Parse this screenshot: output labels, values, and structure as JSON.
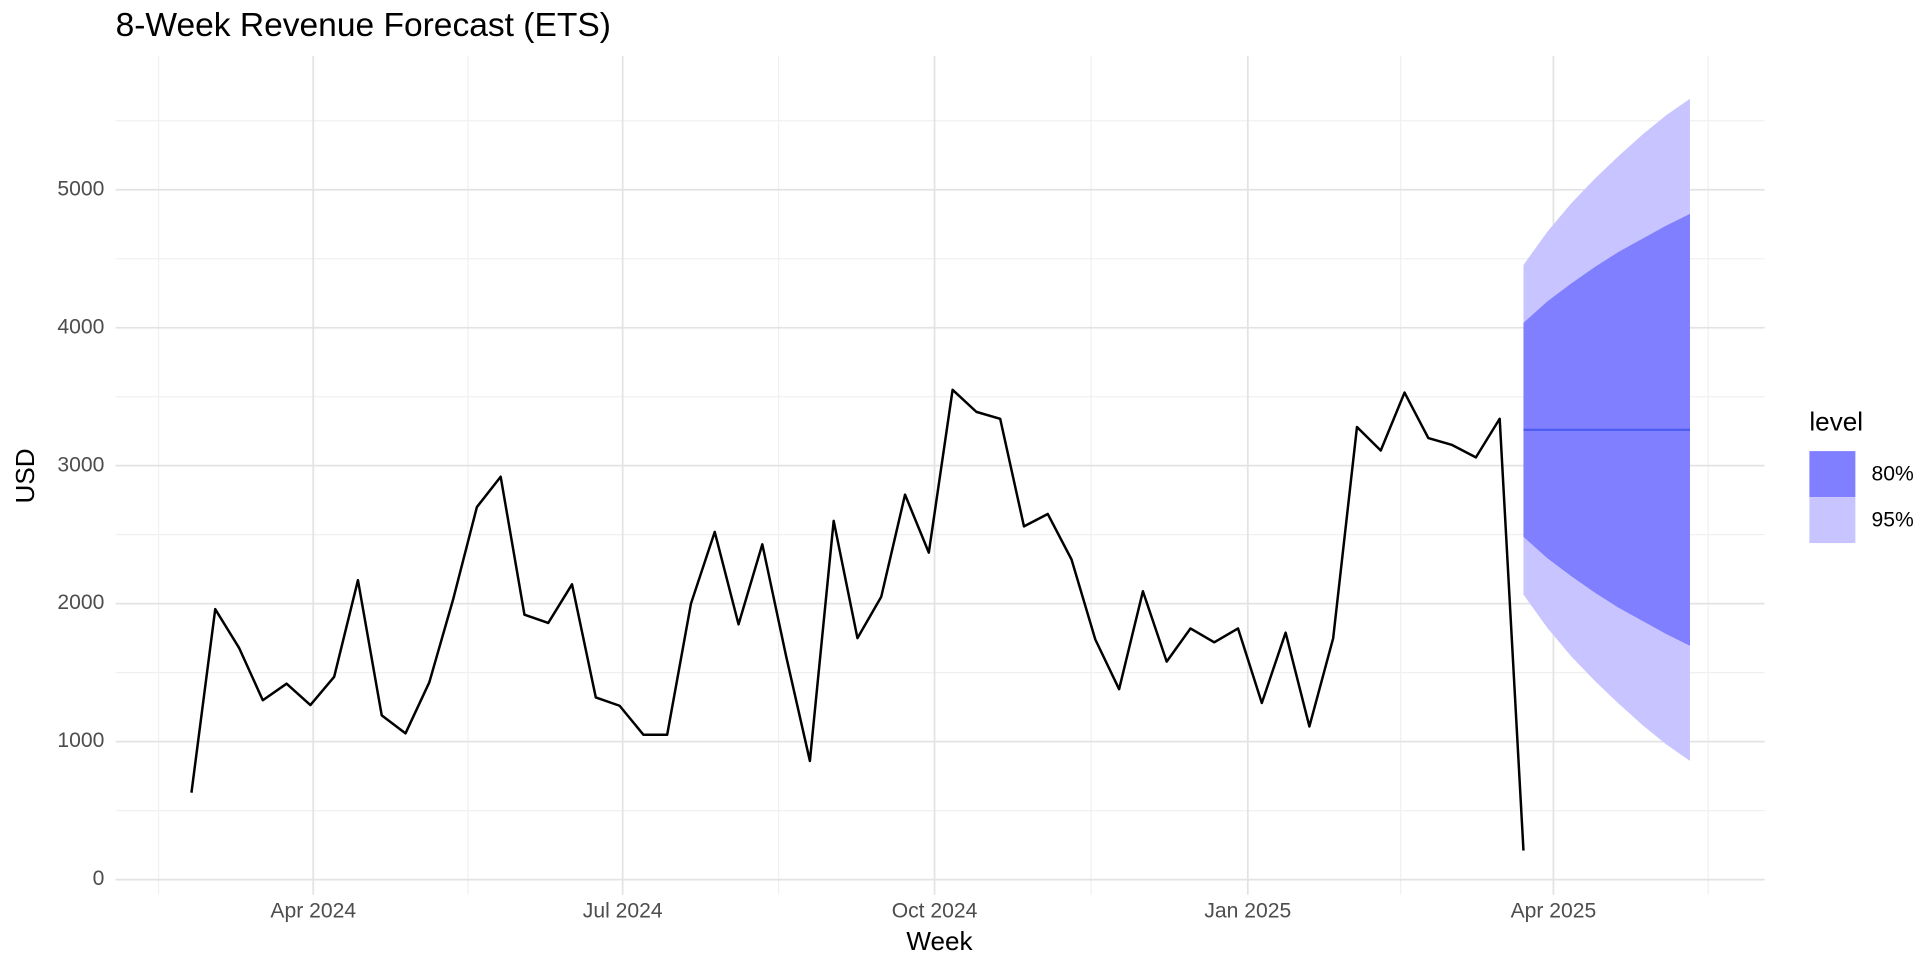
{
  "chart_data": {
    "type": "line",
    "title": "8-Week Revenue Forecast (ETS)",
    "x_label": "Week",
    "y_label": "USD",
    "x": [
      1,
      2,
      3,
      4,
      5,
      6,
      7,
      8,
      9,
      10,
      11,
      12,
      13,
      14,
      15,
      16,
      17,
      18,
      19,
      20,
      21,
      22,
      23,
      24,
      25,
      26,
      27,
      28,
      29,
      30,
      31,
      32,
      33,
      34,
      35,
      36,
      37,
      38,
      39,
      40,
      41,
      42,
      43,
      44,
      45,
      46,
      47,
      48,
      49,
      50,
      51,
      52,
      53,
      54,
      55,
      56,
      57
    ],
    "series": [
      {
        "color": "#000000",
        "values": [
          630,
          1960,
          1680,
          1300,
          1420,
          1265,
          1470,
          2170,
          1190,
          1060,
          1430,
          2030,
          2700,
          2920,
          1920,
          1860,
          2140,
          1320,
          1260,
          1050,
          1050,
          2000,
          2520,
          1850,
          2430,
          1620,
          860,
          2600,
          1750,
          2050,
          2790,
          2370,
          3550,
          3390,
          3340,
          2560,
          2650,
          2320,
          1740,
          1380,
          2090,
          1580,
          1820,
          1720,
          1820,
          1280,
          1790,
          1110,
          1750,
          3280,
          3110,
          3530,
          3200,
          3150,
          3060,
          3340,
          210
        ]
      }
    ],
    "forecast": {
      "x": [
        57,
        58,
        59,
        60,
        61,
        62,
        63,
        64
      ],
      "mean": [
        3260,
        3260,
        3260,
        3260,
        3260,
        3260,
        3260,
        3260
      ],
      "mean_color": "#4a5af0",
      "legend_title": "level",
      "intervals": [
        {
          "name": "80%",
          "color": "#7f7fff",
          "lower": [
            2485,
            2330,
            2200,
            2080,
            1970,
            1875,
            1780,
            1695
          ],
          "upper": [
            4035,
            4190,
            4320,
            4440,
            4550,
            4645,
            4740,
            4825
          ]
        },
        {
          "name": "95%",
          "color": "#c8c4ff",
          "lower": [
            2065,
            1825,
            1620,
            1440,
            1275,
            1120,
            980,
            860
          ],
          "upper": [
            4455,
            4695,
            4900,
            5080,
            5245,
            5400,
            5540,
            5660
          ]
        }
      ]
    },
    "xlim": [
      -2.19,
      67.14
    ],
    "xticks": [
      {
        "value": 6.12,
        "label": "Apr 2024"
      },
      {
        "value": 19.13,
        "label": "Jul 2024"
      },
      {
        "value": 32.24,
        "label": "Oct 2024"
      },
      {
        "value": 45.41,
        "label": "Jan 2025"
      },
      {
        "value": 58.26,
        "label": "Apr 2025"
      }
    ],
    "ylim": [
      -110,
      5970
    ],
    "yticks": [
      0,
      1000,
      2000,
      3000,
      4000,
      5000
    ],
    "grid": true
  }
}
